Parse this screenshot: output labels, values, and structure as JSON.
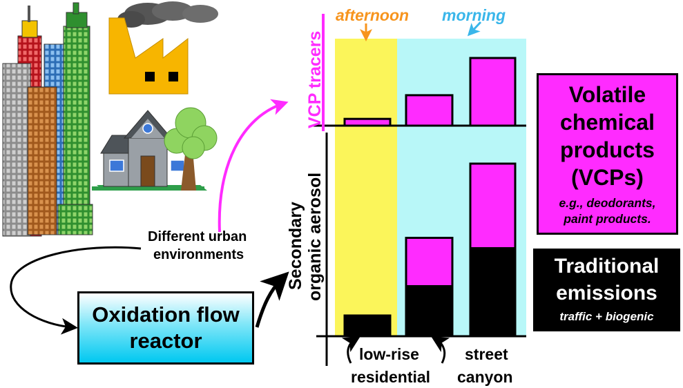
{
  "labels": {
    "environments": "Different urban environments",
    "env_line1": "Different urban",
    "env_line2": "environments",
    "reactor_line1": "Oxidation flow",
    "reactor_line2": "reactor",
    "afternoon": "afternoon",
    "morning": "morning",
    "vcp_tracers_axis": "VCP tracers",
    "soa_axis_line1": "Secondary",
    "soa_axis_line2": "organic aerosol",
    "site_lowrise_line1": "low-rise",
    "site_lowrise_line2": "residential",
    "site_street_line1": "street",
    "site_street_line2": "canyon"
  },
  "legend": {
    "vcp": {
      "line1": "Volatile",
      "line2": "chemical",
      "line3": "products",
      "line4": "(VCPs)",
      "example_line1": "e.g., deodorants,",
      "example_line2": "paint products."
    },
    "traditional": {
      "line1": "Traditional",
      "line2": "emissions",
      "example": "traffic + biogenic"
    }
  },
  "colors": {
    "vcp": "#ff2bff",
    "traditional": "#000000",
    "afternoon_band": "#fbf55a",
    "morning_band": "#b8f7f8",
    "afternoon_text": "#f7941d",
    "morning_text": "#39b6ea",
    "reactor_gradient": "#00c8f0"
  },
  "chart_data": [
    {
      "type": "bar",
      "title": "",
      "ylabel": "VCP tracers",
      "categories": [
        "low-rise residential (afternoon)",
        "low-rise residential (morning)",
        "street canyon (morning)"
      ],
      "series": [
        {
          "name": "Volatile chemical products (VCPs)",
          "values": [
            0.1,
            0.45,
            1.0
          ]
        }
      ]
    },
    {
      "type": "bar",
      "stacked": true,
      "title": "",
      "ylabel": "Secondary organic aerosol",
      "categories": [
        "low-rise residential (afternoon)",
        "low-rise residential (morning)",
        "street canyon (morning)"
      ],
      "series": [
        {
          "name": "Traditional emissions",
          "values": [
            0.12,
            0.29,
            0.51
          ]
        },
        {
          "name": "Volatile chemical products (VCPs)",
          "values": [
            0.0,
            0.28,
            0.49
          ]
        }
      ]
    }
  ],
  "icons": [
    "skyscrapers-icon",
    "factory-icon",
    "smoke-cloud-icon",
    "house-icon",
    "tree-icon"
  ]
}
